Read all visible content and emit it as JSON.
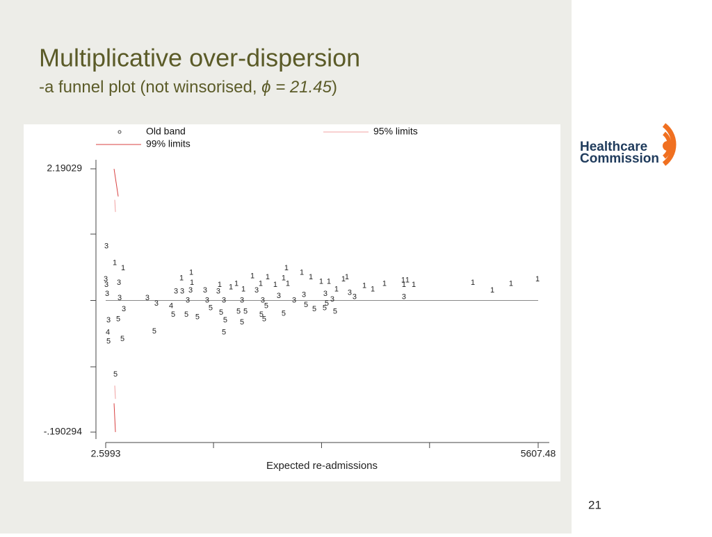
{
  "slide": {
    "title": "Multiplicative over-dispersion",
    "subtitle_parts": [
      "-a funnel plot (not winsorised, ",
      "ϕ = 21.45",
      ")"
    ],
    "logo_lines": [
      "Healthcare",
      "Commission"
    ],
    "page_number": "21"
  },
  "chart_data": {
    "type": "scatter",
    "xlabel": "Expected re-admissions",
    "xlim": [
      2.5993,
      5607.48
    ],
    "ylim": [
      -0.190294,
      2.19029
    ],
    "xticks": [
      2.5993,
      5607.48
    ],
    "yticks": [
      2.19029,
      {
        "value": -0.190294,
        "label": "-.190294"
      }
    ],
    "xminor_ticks": [
      1400,
      2800,
      4200
    ],
    "yminor_ticks": [
      1.6,
      1,
      0.4
    ],
    "reference_line": 1,
    "series": [
      {
        "name": "Old band",
        "color": "#222222",
        "x": [
          12,
          120,
          228,
          3,
          12,
          174,
          21,
          183,
          237,
          39,
          165,
          30,
          39,
          219,
          129,
          633,
          543,
          660,
          850,
          877,
          913,
          985,
          994,
          1111,
          1120,
          1102,
          1066,
          1048,
          1192,
          1291,
          1318,
          1363,
          1480,
          1462,
          1535,
          1499,
          1552,
          1535,
          1625,
          1697,
          1769,
          1787,
          1724,
          1814,
          1769,
          1904,
          1958,
          2012,
          2039,
          2084,
          2021,
          2057,
          2102,
          2201,
          2246,
          2309,
          2345,
          2309,
          2363,
          2445,
          2544,
          2571,
          2598,
          2661,
          2706,
          2796,
          2850,
          2868,
          2841,
          2895,
          2940,
          2976,
          2994,
          3084,
          3129,
          3165,
          3228,
          3355,
          3463,
          3616,
          3859,
          3913,
          3868,
          3868,
          3995,
          4761,
          5013,
          5256,
          5599
        ],
        "y": [
          1.49,
          1.34,
          1.29,
          1.19,
          1.14,
          1.16,
          1.06,
          1.02,
          0.92,
          0.82,
          0.83,
          0.71,
          0.63,
          0.65,
          0.33,
          0.72,
          1.02,
          0.97,
          0.95,
          0.87,
          1.08,
          1.2,
          1.08,
          1.25,
          1.16,
          1.09,
          1.0,
          0.87,
          0.85,
          1.09,
          1.0,
          0.93,
          1.14,
          1.08,
          1.0,
          0.89,
          0.82,
          0.71,
          1.12,
          1.15,
          1.0,
          1.1,
          0.9,
          0.9,
          0.8,
          1.22,
          1.09,
          1.15,
          1.0,
          0.95,
          0.87,
          0.83,
          1.21,
          1.14,
          1.04,
          1.2,
          1.29,
          0.88,
          1.15,
          1.0,
          1.25,
          1.05,
          0.96,
          1.21,
          0.92,
          1.17,
          1.06,
          0.97,
          0.93,
          1.17,
          1.01,
          0.9,
          1.1,
          1.19,
          1.21,
          1.07,
          1.03,
          1.13,
          1.1,
          1.15,
          1.18,
          1.18,
          1.03,
          1.14,
          1.14,
          1.16,
          1.09,
          1.15,
          1.19
        ],
        "labels": [
          "3",
          "1",
          "1",
          "3",
          "3",
          "3",
          "3",
          "3",
          "3",
          "3",
          "5",
          "4",
          "5",
          "5",
          "5",
          "5",
          "3",
          "3",
          "4",
          "5",
          "3",
          "1",
          "3",
          "1",
          "1",
          "3",
          "3",
          "5",
          "5",
          "3",
          "3",
          "5",
          "1",
          "3",
          "3",
          "5",
          "5",
          "5",
          "1",
          "1",
          "3",
          "1",
          "5",
          "5",
          "5",
          "1",
          "3",
          "1",
          "3",
          "5",
          "5",
          "5",
          "1",
          "1",
          "3",
          "1",
          "1",
          "5",
          "1",
          "3",
          "1",
          "3",
          "5",
          "1",
          "5",
          "1",
          "3",
          "5",
          "5",
          "1",
          "3",
          "5",
          "1",
          "1",
          "1",
          "3",
          "3",
          "1",
          "1",
          "1",
          "1",
          "1",
          "3",
          "1",
          "1",
          "1",
          "1",
          "1",
          "1"
        ]
      },
      {
        "name": "95% limits",
        "color": "#f0a0a0",
        "x": [
          120,
          129,
          null,
          120,
          129
        ],
        "y": [
          1.91,
          1.8,
          null,
          0.23,
          0.11
        ]
      },
      {
        "name": "99% limits",
        "color": "#d84040",
        "x": [
          111,
          165,
          null,
          111,
          129
        ],
        "y": [
          2.19,
          1.94,
          null,
          0.07,
          -0.19
        ]
      }
    ]
  }
}
